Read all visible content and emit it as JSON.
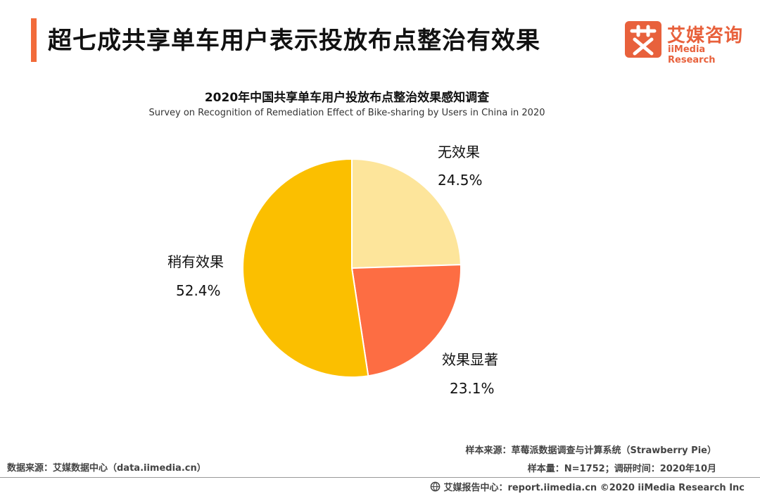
{
  "header": {
    "title": "超七成共享单车用户表示投放布点整治有效果",
    "logo_cn": "艾媒咨询",
    "logo_en": "iiMedia Research",
    "accent_color": "#f26b3a"
  },
  "chart_data": {
    "type": "pie",
    "title": "2020年中国共享单车用户投放布点整治效果感知调查",
    "subtitle": "Survey on Recognition of Remediation Effect of Bike-sharing by Users in China in 2020",
    "slices": [
      {
        "label": "无效果",
        "value": 24.5,
        "display": "24.5%",
        "color": "#fde59b"
      },
      {
        "label": "效果显著",
        "value": 23.1,
        "display": "23.1%",
        "color": "#fd6d43"
      },
      {
        "label": "稍有效果",
        "value": 52.4,
        "display": "52.4%",
        "color": "#fbbf00"
      }
    ]
  },
  "footer": {
    "data_source": "数据来源：艾媒数据中心（data.iimedia.cn）",
    "sample_source": "样本来源：草莓派数据调查与计算系统（Strawberry Pie）",
    "sample_size": "样本量：N=1752；调研时间：2020年10月",
    "report_center": "艾媒报告中心：report.iimedia.cn ©2020  iiMedia Research  Inc"
  }
}
